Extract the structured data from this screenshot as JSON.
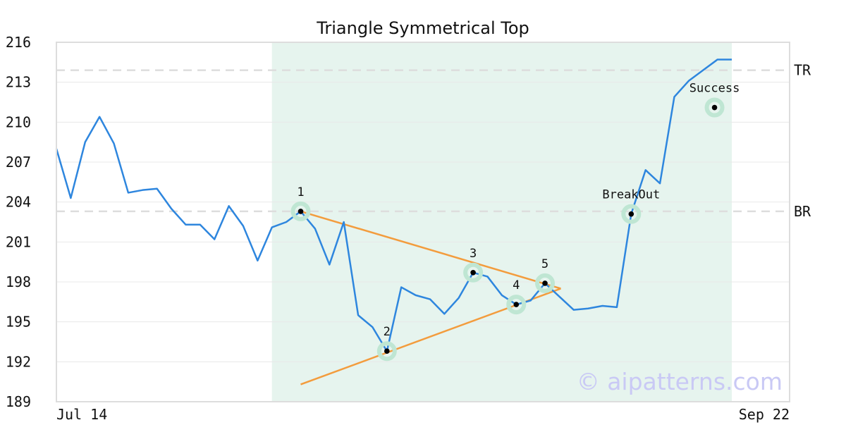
{
  "chart_data": {
    "type": "line",
    "title": "Triangle Symmetrical Top",
    "watermark": "© aipatterns.com",
    "x_tick_labels": [
      "Jul 14",
      "Sep 22"
    ],
    "ylim": [
      189,
      216
    ],
    "y_ticks": [
      189,
      192,
      195,
      198,
      201,
      204,
      207,
      210,
      213,
      216
    ],
    "grid": true,
    "x_count": 48,
    "series": [
      {
        "values": [
          208.0,
          204.3,
          208.5,
          210.4,
          208.4,
          204.7,
          204.9,
          205.0,
          203.5,
          202.3,
          202.3,
          201.2,
          203.7,
          202.2,
          199.6,
          202.1,
          202.5,
          203.3,
          202.0,
          199.3,
          202.5,
          195.5,
          194.6,
          192.8,
          197.6,
          197.0,
          196.7,
          195.6,
          196.8,
          198.7,
          198.4,
          197.0,
          196.3,
          196.6,
          197.9,
          196.9,
          195.9,
          196.0,
          196.2,
          196.1,
          203.1,
          206.4,
          205.4,
          211.9,
          213.1,
          213.9,
          214.7,
          214.7
        ],
        "color": "#2e86de"
      }
    ],
    "highlight": {
      "x_start": 15,
      "x_end": 47,
      "color": "#e6f4ee"
    },
    "levels": [
      {
        "label": "TR",
        "value": 213.9
      },
      {
        "label": "BR",
        "value": 203.3
      }
    ],
    "trendlines": [
      {
        "from": [
          17,
          203.3
        ],
        "to": [
          35.1,
          197.5
        ],
        "color": "#f39c3d"
      },
      {
        "from": [
          17,
          190.3
        ],
        "to": [
          35.1,
          197.5
        ],
        "color": "#f39c3d"
      }
    ],
    "points": [
      {
        "label": "1",
        "x": 17,
        "y": 203.3
      },
      {
        "label": "2",
        "x": 23,
        "y": 192.8
      },
      {
        "label": "3",
        "x": 29,
        "y": 198.7
      },
      {
        "label": "4",
        "x": 32,
        "y": 196.3
      },
      {
        "label": "5",
        "x": 34,
        "y": 197.9
      },
      {
        "label": "BreakOut",
        "x": 40,
        "y": 203.1
      },
      {
        "label": "Success",
        "x": 45.8,
        "y": 211.1
      }
    ]
  }
}
